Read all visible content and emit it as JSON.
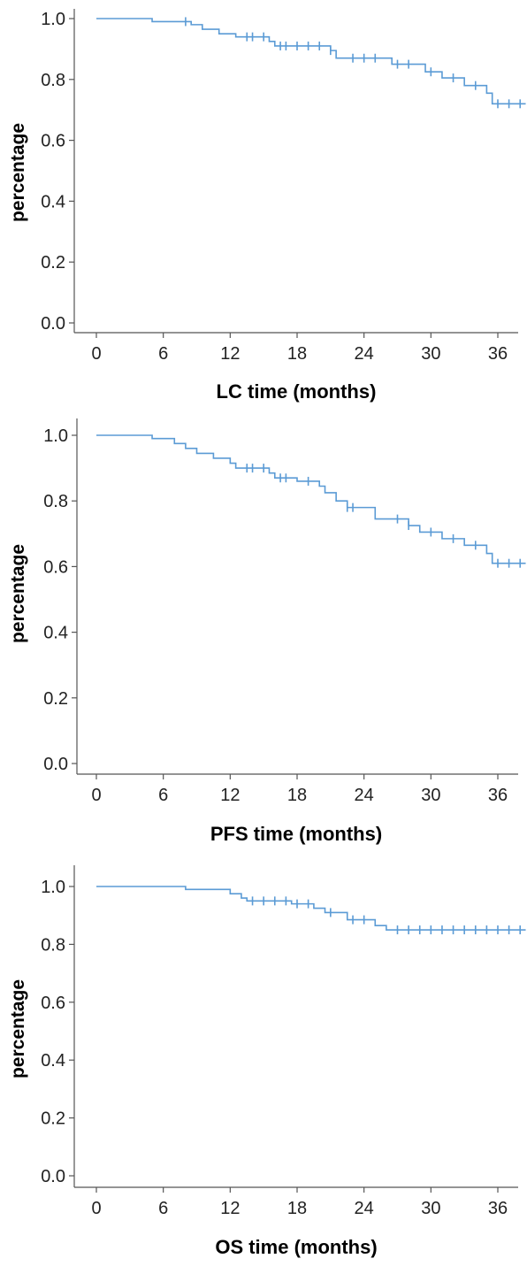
{
  "chart_data": [
    {
      "type": "line",
      "xlabel": "LC time (months)",
      "ylabel": "percentage",
      "xticks": [
        0,
        6,
        12,
        18,
        24,
        30,
        36
      ],
      "yticks": [
        "0.0",
        "0.2",
        "0.4",
        "0.6",
        "0.8",
        "1.0"
      ],
      "xlim": [
        -2,
        38.5
      ],
      "ylim": [
        -0.02,
        1.05
      ],
      "grid": false,
      "line_color": "#5b9bd5",
      "series": [
        {
          "steps": [
            [
              0,
              1.0
            ],
            [
              5,
              0.99
            ],
            [
              8.5,
              0.98
            ],
            [
              9.5,
              0.965
            ],
            [
              11,
              0.95
            ],
            [
              12.5,
              0.94
            ],
            [
              15.5,
              0.925
            ],
            [
              16,
              0.91
            ],
            [
              21,
              0.895
            ],
            [
              21.5,
              0.87
            ],
            [
              26.5,
              0.85
            ],
            [
              29.5,
              0.825
            ],
            [
              31,
              0.805
            ],
            [
              33,
              0.78
            ],
            [
              35,
              0.755
            ],
            [
              35.5,
              0.72
            ]
          ],
          "end_x": 38.5,
          "censored": [
            8,
            13.5,
            14,
            15,
            16.5,
            17,
            18,
            19,
            20,
            21,
            23,
            24,
            25,
            27,
            28,
            30,
            32,
            34,
            36,
            37,
            38
          ]
        }
      ]
    },
    {
      "type": "line",
      "xlabel": "PFS time (months)",
      "ylabel": "percentage",
      "xticks": [
        0,
        6,
        12,
        18,
        24,
        30,
        36
      ],
      "yticks": [
        "0.0",
        "0.2",
        "0.4",
        "0.6",
        "0.8",
        "1.0"
      ],
      "xlim": [
        -2,
        38.5
      ],
      "ylim": [
        -0.02,
        1.05
      ],
      "grid": false,
      "line_color": "#5b9bd5",
      "series": [
        {
          "steps": [
            [
              0,
              1.0
            ],
            [
              5,
              0.99
            ],
            [
              7,
              0.975
            ],
            [
              8,
              0.96
            ],
            [
              9,
              0.945
            ],
            [
              10.5,
              0.93
            ],
            [
              12,
              0.915
            ],
            [
              12.5,
              0.9
            ],
            [
              15.5,
              0.885
            ],
            [
              16,
              0.87
            ],
            [
              18,
              0.86
            ],
            [
              20,
              0.845
            ],
            [
              20.5,
              0.825
            ],
            [
              21.5,
              0.8
            ],
            [
              22.5,
              0.78
            ],
            [
              25,
              0.745
            ],
            [
              28,
              0.725
            ],
            [
              29,
              0.705
            ],
            [
              31,
              0.685
            ],
            [
              33,
              0.665
            ],
            [
              35,
              0.64
            ],
            [
              35.5,
              0.61
            ]
          ],
          "end_x": 38.5,
          "censored": [
            13.5,
            14,
            15,
            16.5,
            17,
            19,
            22.5,
            23,
            27,
            28,
            30,
            32,
            34,
            36,
            37,
            38
          ]
        }
      ]
    },
    {
      "type": "line",
      "xlabel": "OS time (months)",
      "ylabel": "percentage",
      "xticks": [
        0,
        6,
        12,
        18,
        24,
        30,
        36
      ],
      "yticks": [
        "0.0",
        "0.2",
        "0.4",
        "0.6",
        "0.8",
        "1.0"
      ],
      "xlim": [
        -2,
        38.5
      ],
      "ylim": [
        -0.02,
        1.05
      ],
      "grid": false,
      "line_color": "#5b9bd5",
      "series": [
        {
          "steps": [
            [
              0,
              1.0
            ],
            [
              8,
              0.99
            ],
            [
              12,
              0.975
            ],
            [
              13,
              0.96
            ],
            [
              13.5,
              0.95
            ],
            [
              17.5,
              0.94
            ],
            [
              19.5,
              0.925
            ],
            [
              20.5,
              0.91
            ],
            [
              22.5,
              0.885
            ],
            [
              25,
              0.865
            ],
            [
              26,
              0.85
            ]
          ],
          "end_x": 38.5,
          "censored": [
            14,
            15,
            16,
            17,
            18,
            19,
            21,
            23,
            24,
            27,
            28,
            29,
            30,
            31,
            32,
            33,
            34,
            35,
            36,
            37,
            38
          ]
        }
      ]
    }
  ]
}
